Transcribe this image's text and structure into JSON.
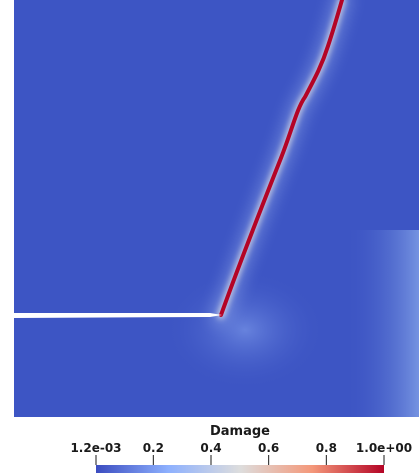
{
  "chart_data": {
    "type": "heatmap",
    "colorbar": {
      "title": "Damage",
      "range": [
        0.0012,
        1.0
      ],
      "ticks": [
        {
          "value": 0.0012,
          "label": "1.2e-03"
        },
        {
          "value": 0.2,
          "label": "0.2"
        },
        {
          "value": 0.4,
          "label": "0.4"
        },
        {
          "value": 0.6,
          "label": "0.6"
        },
        {
          "value": 0.8,
          "label": "0.8"
        },
        {
          "value": 1.0,
          "label": "1.0e+00"
        }
      ],
      "colormap": [
        "#3b4cc0",
        "#dddddd",
        "#b40426"
      ],
      "placement": "bottom"
    },
    "field": {
      "background_value": 0.0012,
      "crack_value": 1.0,
      "notch": "left edge to center, horizontal",
      "crack_path": "from notch tip to top edge, inclined"
    }
  },
  "colors": {
    "low": "#3b4cc0",
    "field_low": "#3d55c4",
    "mid": "#dddddd",
    "high": "#b40426",
    "notch": "#ffffff"
  }
}
